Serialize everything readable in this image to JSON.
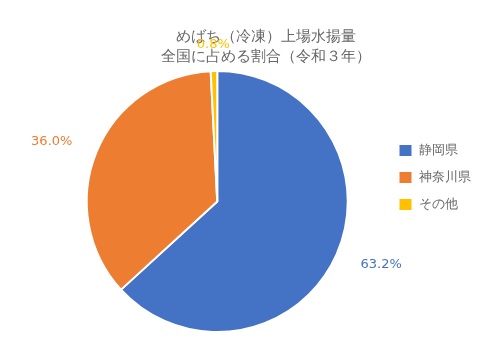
{
  "chart_data": {
    "type": "pie",
    "title": "めばち（冷凍）上場水揚量",
    "subtitle": "全国に占める割合（令和３年）",
    "categories": [
      "静岡県",
      "神奈川県",
      "その他"
    ],
    "values": [
      63.2,
      36.0,
      0.8
    ],
    "value_labels": [
      "63.2%",
      "36.0%",
      "0.8%"
    ],
    "colors": [
      "#4472C4",
      "#ED7D31",
      "#FFC000"
    ],
    "data_labels": true,
    "legend": "right"
  }
}
